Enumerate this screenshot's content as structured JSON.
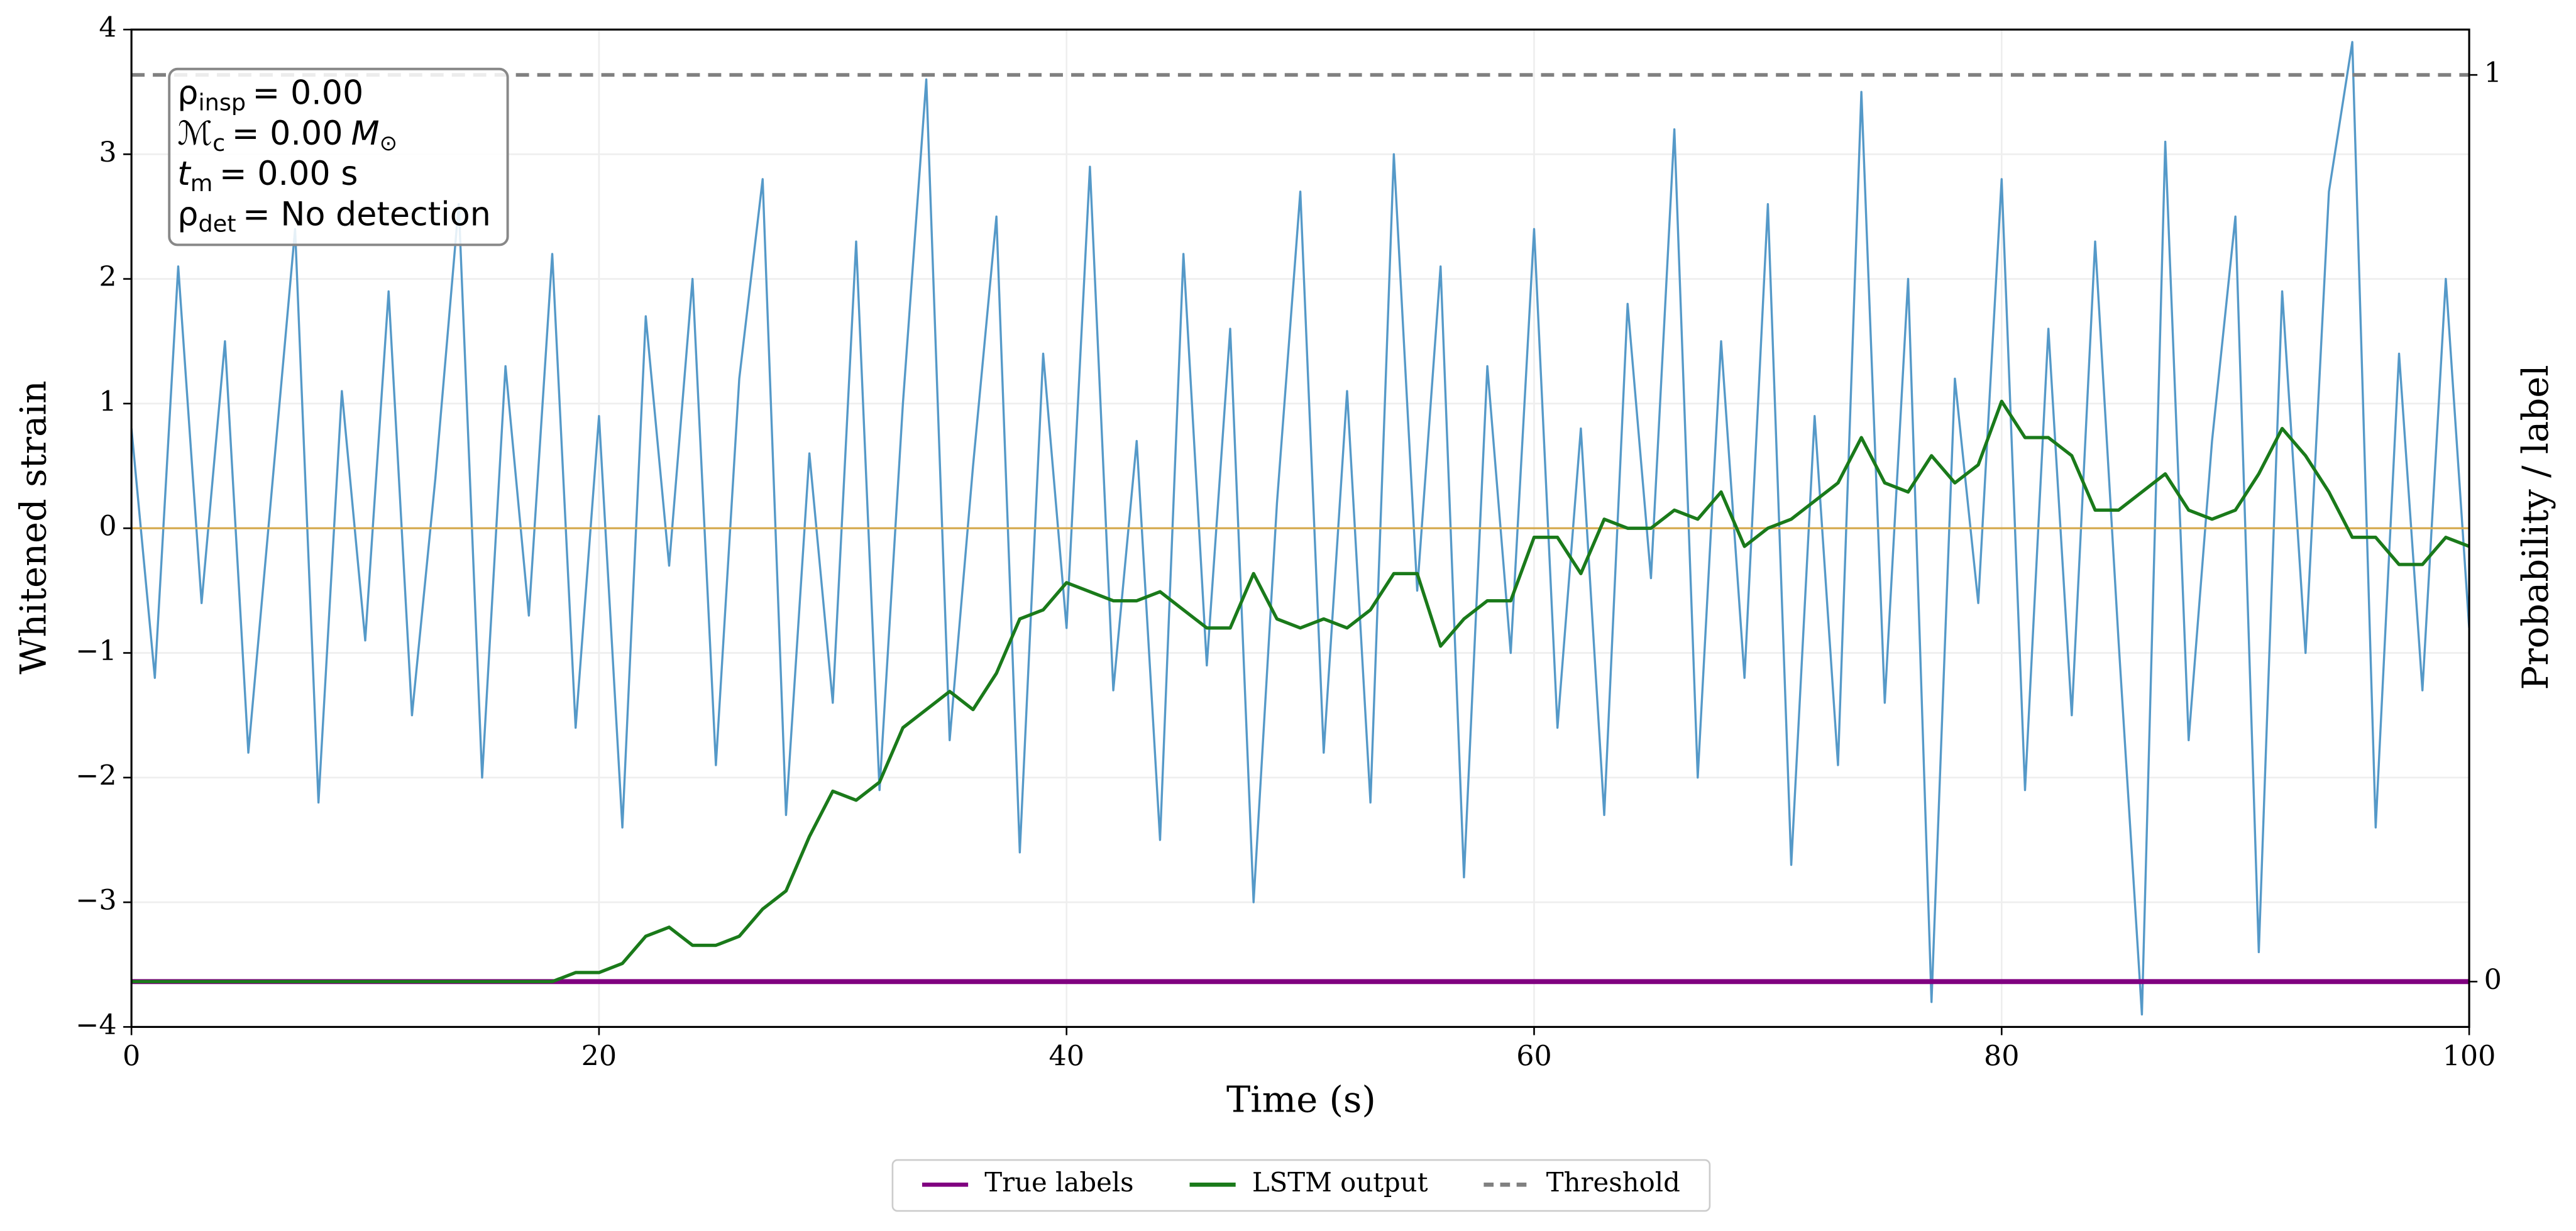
{
  "chart_data": {
    "type": "line",
    "x_label": "Time (s)",
    "y_label": "Whitened strain",
    "y2_label": "Probability / label",
    "xlim": [
      0,
      100
    ],
    "xticks": [
      0,
      20,
      40,
      60,
      80,
      100
    ],
    "ylim": [
      -4,
      4
    ],
    "yticks": [
      {
        "value": -4,
        "label": "−4"
      },
      {
        "value": -3,
        "label": "−3"
      },
      {
        "value": -2,
        "label": "−2"
      },
      {
        "value": -1,
        "label": "−1"
      },
      0,
      1,
      2,
      3,
      4
    ],
    "y2lim": [
      -0.05,
      1.05
    ],
    "y2ticks": [
      0,
      1
    ],
    "grid": true,
    "legend": "bottom",
    "reference_line": {
      "value": 0,
      "color": "#d4a84b"
    },
    "threshold": {
      "name": "Threshold",
      "value": 1,
      "axis": "y2",
      "color": "#808080"
    },
    "x": [
      0,
      1,
      2,
      3,
      4,
      5,
      6,
      7,
      8,
      9,
      10,
      11,
      12,
      13,
      14,
      15,
      16,
      17,
      18,
      19,
      20,
      21,
      22,
      23,
      24,
      25,
      26,
      27,
      28,
      29,
      30,
      31,
      32,
      33,
      34,
      35,
      36,
      37,
      38,
      39,
      40,
      41,
      42,
      43,
      44,
      45,
      46,
      47,
      48,
      49,
      50,
      51,
      52,
      53,
      54,
      55,
      56,
      57,
      58,
      59,
      60,
      61,
      62,
      63,
      64,
      65,
      66,
      67,
      68,
      69,
      70,
      71,
      72,
      73,
      74,
      75,
      76,
      77,
      78,
      79,
      80,
      81,
      82,
      83,
      84,
      85,
      86,
      87,
      88,
      89,
      90,
      91,
      92,
      93,
      94,
      95,
      96,
      97,
      98,
      99,
      100
    ],
    "series": [
      {
        "color": "#5599c8",
        "axis": "y",
        "values": [
          0.8,
          -1.2,
          2.1,
          -0.6,
          1.5,
          -1.8,
          0.3,
          2.4,
          -2.2,
          1.1,
          -0.9,
          1.9,
          -1.5,
          0.4,
          2.6,
          -2.0,
          1.3,
          -0.7,
          2.2,
          -1.6,
          0.9,
          -2.4,
          1.7,
          -0.3,
          2.0,
          -1.9,
          1.2,
          2.8,
          -2.3,
          0.6,
          -1.4,
          2.3,
          -2.1,
          1.0,
          3.6,
          -1.7,
          0.5,
          2.5,
          -2.6,
          1.4,
          -0.8,
          2.9,
          -1.3,
          0.7,
          -2.5,
          2.2,
          -1.1,
          1.6,
          -3.0,
          0.2,
          2.7,
          -1.8,
          1.1,
          -2.2,
          3.0,
          -0.5,
          2.1,
          -2.8,
          1.3,
          -1.0,
          2.4,
          -1.6,
          0.8,
          -2.3,
          1.8,
          -0.4,
          3.2,
          -2.0,
          1.5,
          -1.2,
          2.6,
          -2.7,
          0.9,
          -1.9,
          3.5,
          -1.4,
          2.0,
          -3.8,
          1.2,
          -0.6,
          2.8,
          -2.1,
          1.6,
          -1.5,
          2.3,
          -0.9,
          -3.9,
          3.1,
          -1.7,
          0.7,
          2.5,
          -3.4,
          1.9,
          -1.0,
          2.7,
          3.9,
          -2.4,
          1.4,
          -1.3,
          2.0,
          -0.8
        ]
      },
      {
        "name": "True labels",
        "color": "#800080",
        "axis": "y2",
        "x": [
          0,
          100
        ],
        "values": [
          0,
          0
        ]
      },
      {
        "name": "LSTM output",
        "color": "#1a7a1a",
        "axis": "y2",
        "values": [
          0,
          0,
          0,
          0,
          0,
          0,
          0,
          0,
          0,
          0,
          0,
          0,
          0,
          0,
          0,
          0,
          0,
          0,
          0,
          0.01,
          0.01,
          0.02,
          0.05,
          0.06,
          0.04,
          0.04,
          0.05,
          0.08,
          0.1,
          0.16,
          0.21,
          0.2,
          0.22,
          0.28,
          0.3,
          0.32,
          0.3,
          0.34,
          0.4,
          0.41,
          0.44,
          0.43,
          0.42,
          0.42,
          0.43,
          0.41,
          0.39,
          0.39,
          0.45,
          0.4,
          0.39,
          0.4,
          0.39,
          0.41,
          0.45,
          0.45,
          0.37,
          0.4,
          0.42,
          0.42,
          0.49,
          0.49,
          0.45,
          0.51,
          0.5,
          0.5,
          0.52,
          0.51,
          0.54,
          0.48,
          0.5,
          0.51,
          0.53,
          0.55,
          0.6,
          0.55,
          0.54,
          0.58,
          0.55,
          0.57,
          0.64,
          0.6,
          0.6,
          0.58,
          0.52,
          0.52,
          0.54,
          0.56,
          0.52,
          0.51,
          0.52,
          0.56,
          0.61,
          0.58,
          0.54,
          0.49,
          0.49,
          0.46,
          0.46,
          0.49,
          0.48
        ]
      }
    ],
    "annotations": [
      {
        "symbol": "ρ",
        "sub": "insp",
        "text": "= 0.00"
      },
      {
        "symbol": "ℳ",
        "sub": "c",
        "text": "= 0.00",
        "unit": "M",
        "unit_sub": "⊙"
      },
      {
        "symbol": "t",
        "sub": "m",
        "text": "= 0.00 s"
      },
      {
        "symbol": "ρ",
        "sub": "det",
        "text": "= No detection"
      }
    ]
  }
}
